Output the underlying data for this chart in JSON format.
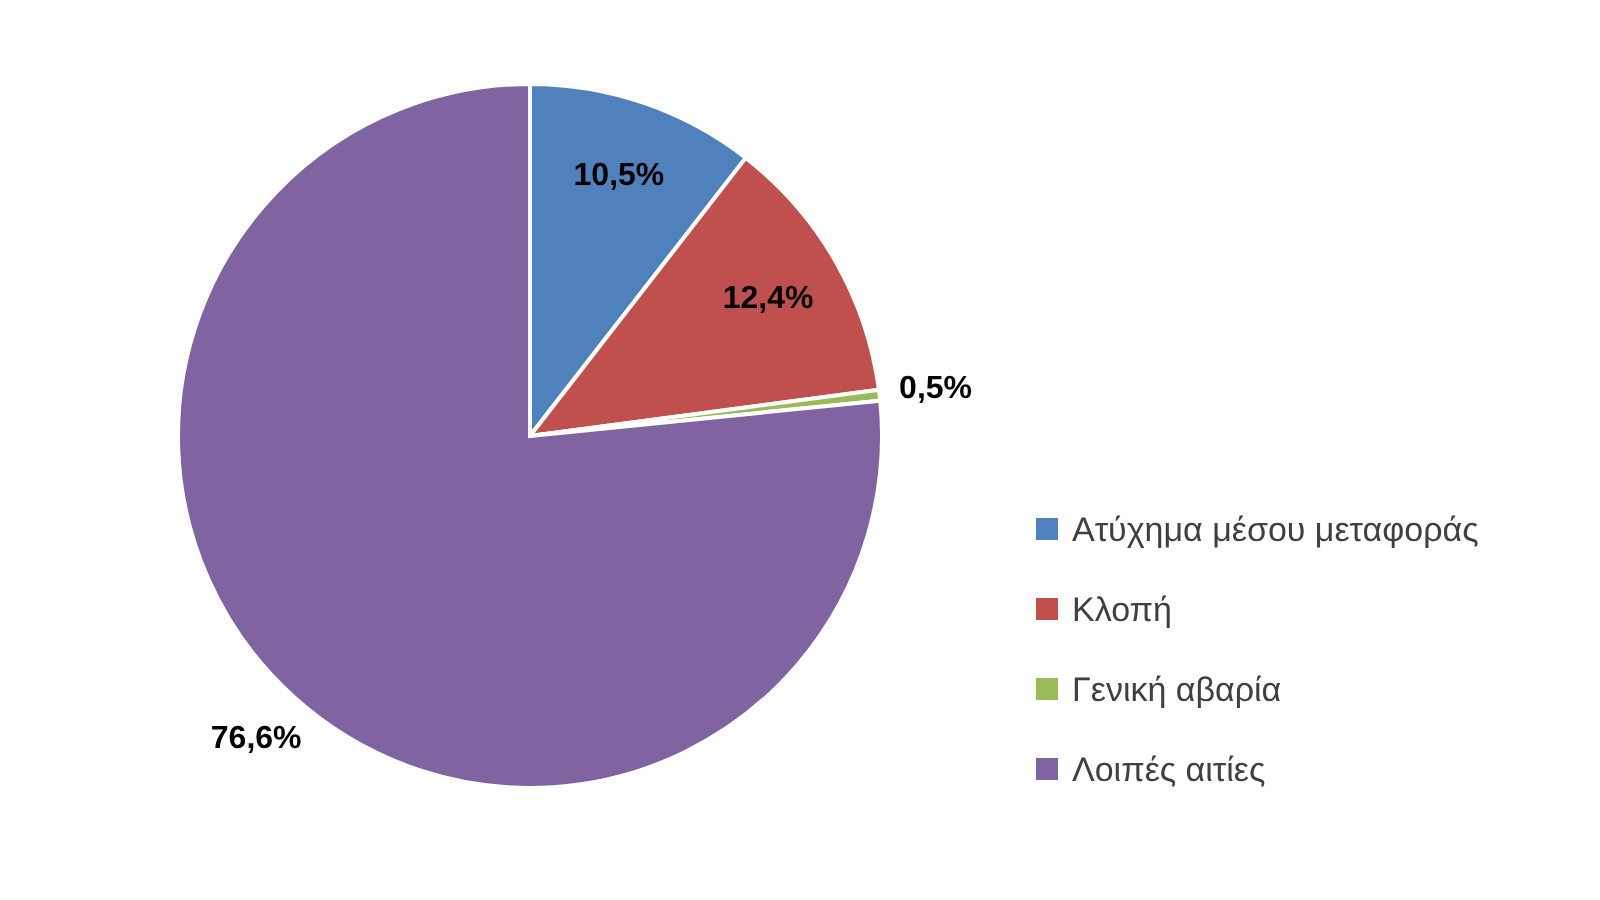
{
  "chart_data": {
    "type": "pie",
    "categories": [
      "Ατύχημα μέσου μεταφοράς",
      "Κλοπή",
      "Γενική αβαρία",
      "Λοιπές αιτίες"
    ],
    "values": [
      10.5,
      12.4,
      0.5,
      76.6
    ],
    "colors": [
      "#4f81bd",
      "#c0504d",
      "#9bbb59",
      "#8064a2"
    ],
    "value_labels": [
      "10,5%",
      "12,4%",
      "0,5%",
      "76,6%"
    ],
    "legend": "right"
  }
}
